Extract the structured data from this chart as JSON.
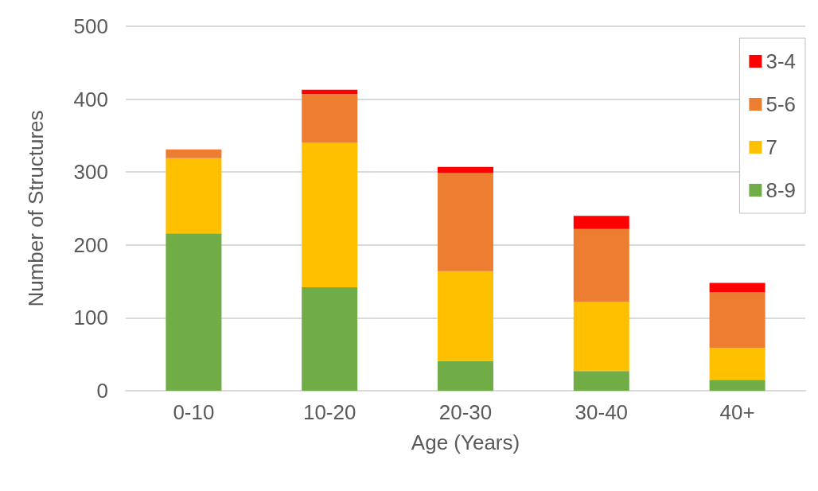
{
  "chart_data": {
    "type": "bar",
    "stacked": true,
    "xlabel": "Age (Years)",
    "ylabel": "Number of Structures",
    "categories": [
      "0-10",
      "10-20",
      "20-30",
      "30-40",
      "40+"
    ],
    "series": [
      {
        "name": "8-9",
        "color": "#70ad47",
        "values": [
          216,
          142,
          41,
          27,
          15
        ]
      },
      {
        "name": "7",
        "color": "#ffc000",
        "values": [
          103,
          198,
          123,
          95,
          44
        ]
      },
      {
        "name": "5-6",
        "color": "#ed7d31",
        "values": [
          12,
          67,
          135,
          100,
          76
        ]
      },
      {
        "name": "3-4",
        "color": "#ff0000",
        "values": [
          0,
          6,
          8,
          18,
          13
        ]
      }
    ],
    "ylim": [
      0,
      500
    ],
    "yticks": [
      0,
      100,
      200,
      300,
      400,
      500
    ],
    "grid": "y",
    "legend": "top right"
  }
}
